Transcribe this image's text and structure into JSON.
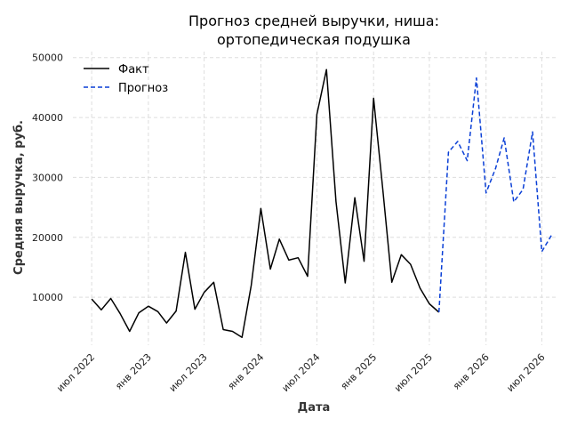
{
  "chart_data": {
    "type": "line",
    "title_lines": [
      "Прогноз средней выручки, ниша:",
      "ортопедическая подушка"
    ],
    "xlabel": "Дата",
    "ylabel": "Средняя выручка, руб.",
    "x_ticks": [
      {
        "date": "2022-07-01",
        "label": "июл 2022"
      },
      {
        "date": "2023-01-01",
        "label": "янв 2023"
      },
      {
        "date": "2023-07-01",
        "label": "июл 2023"
      },
      {
        "date": "2024-01-01",
        "label": "янв 2024"
      },
      {
        "date": "2024-07-01",
        "label": "июл 2024"
      },
      {
        "date": "2025-01-01",
        "label": "янв 2025"
      },
      {
        "date": "2025-07-01",
        "label": "июл 2025"
      },
      {
        "date": "2026-01-01",
        "label": "янв 2026"
      },
      {
        "date": "2026-07-01",
        "label": "июл 2026"
      }
    ],
    "y_ticks": [
      10000,
      20000,
      30000,
      40000,
      50000
    ],
    "xlim": [
      "2022-05-01",
      "2026-08-15"
    ],
    "ylim": [
      2000,
      51000
    ],
    "grid": true,
    "legend_position": "top-left",
    "series": [
      {
        "name": "Факт",
        "color": "#000000",
        "dash": "solid",
        "x": [
          "2022-07-01",
          "2022-08-01",
          "2022-09-01",
          "2022-10-01",
          "2022-11-01",
          "2022-12-01",
          "2023-01-01",
          "2023-02-01",
          "2023-03-01",
          "2023-04-01",
          "2023-05-01",
          "2023-06-01",
          "2023-07-01",
          "2023-08-01",
          "2023-09-01",
          "2023-10-01",
          "2023-11-01",
          "2023-12-01",
          "2024-01-01",
          "2024-02-01",
          "2024-03-01",
          "2024-04-01",
          "2024-05-01",
          "2024-06-01",
          "2024-07-01",
          "2024-08-01",
          "2024-09-01",
          "2024-10-01",
          "2024-11-01",
          "2024-12-01",
          "2025-01-01",
          "2025-02-01",
          "2025-03-01",
          "2025-04-01",
          "2025-05-01",
          "2025-06-01",
          "2025-07-01",
          "2025-08-01"
        ],
        "values": [
          9700,
          7900,
          9800,
          7300,
          4300,
          7400,
          8500,
          7600,
          5700,
          7700,
          17500,
          8000,
          10800,
          12500,
          4600,
          4300,
          3300,
          12000,
          24800,
          14700,
          19700,
          16200,
          16600,
          13500,
          40500,
          48000,
          26000,
          12400,
          26600,
          16000,
          43200,
          27500,
          12500,
          17100,
          15500,
          11500,
          8900,
          7500
        ]
      },
      {
        "name": "Прогноз",
        "color": "#0a3fd6",
        "dash": "dashed",
        "x": [
          "2025-08-01",
          "2025-09-01",
          "2025-10-01",
          "2025-11-01",
          "2025-12-01",
          "2026-01-01",
          "2026-02-01",
          "2026-03-01",
          "2026-04-01",
          "2026-05-01",
          "2026-06-01",
          "2026-07-01",
          "2026-08-01"
        ],
        "values": [
          7500,
          34200,
          36000,
          32800,
          46600,
          27400,
          31500,
          36600,
          25900,
          28000,
          37600,
          17600,
          20300
        ]
      }
    ]
  }
}
